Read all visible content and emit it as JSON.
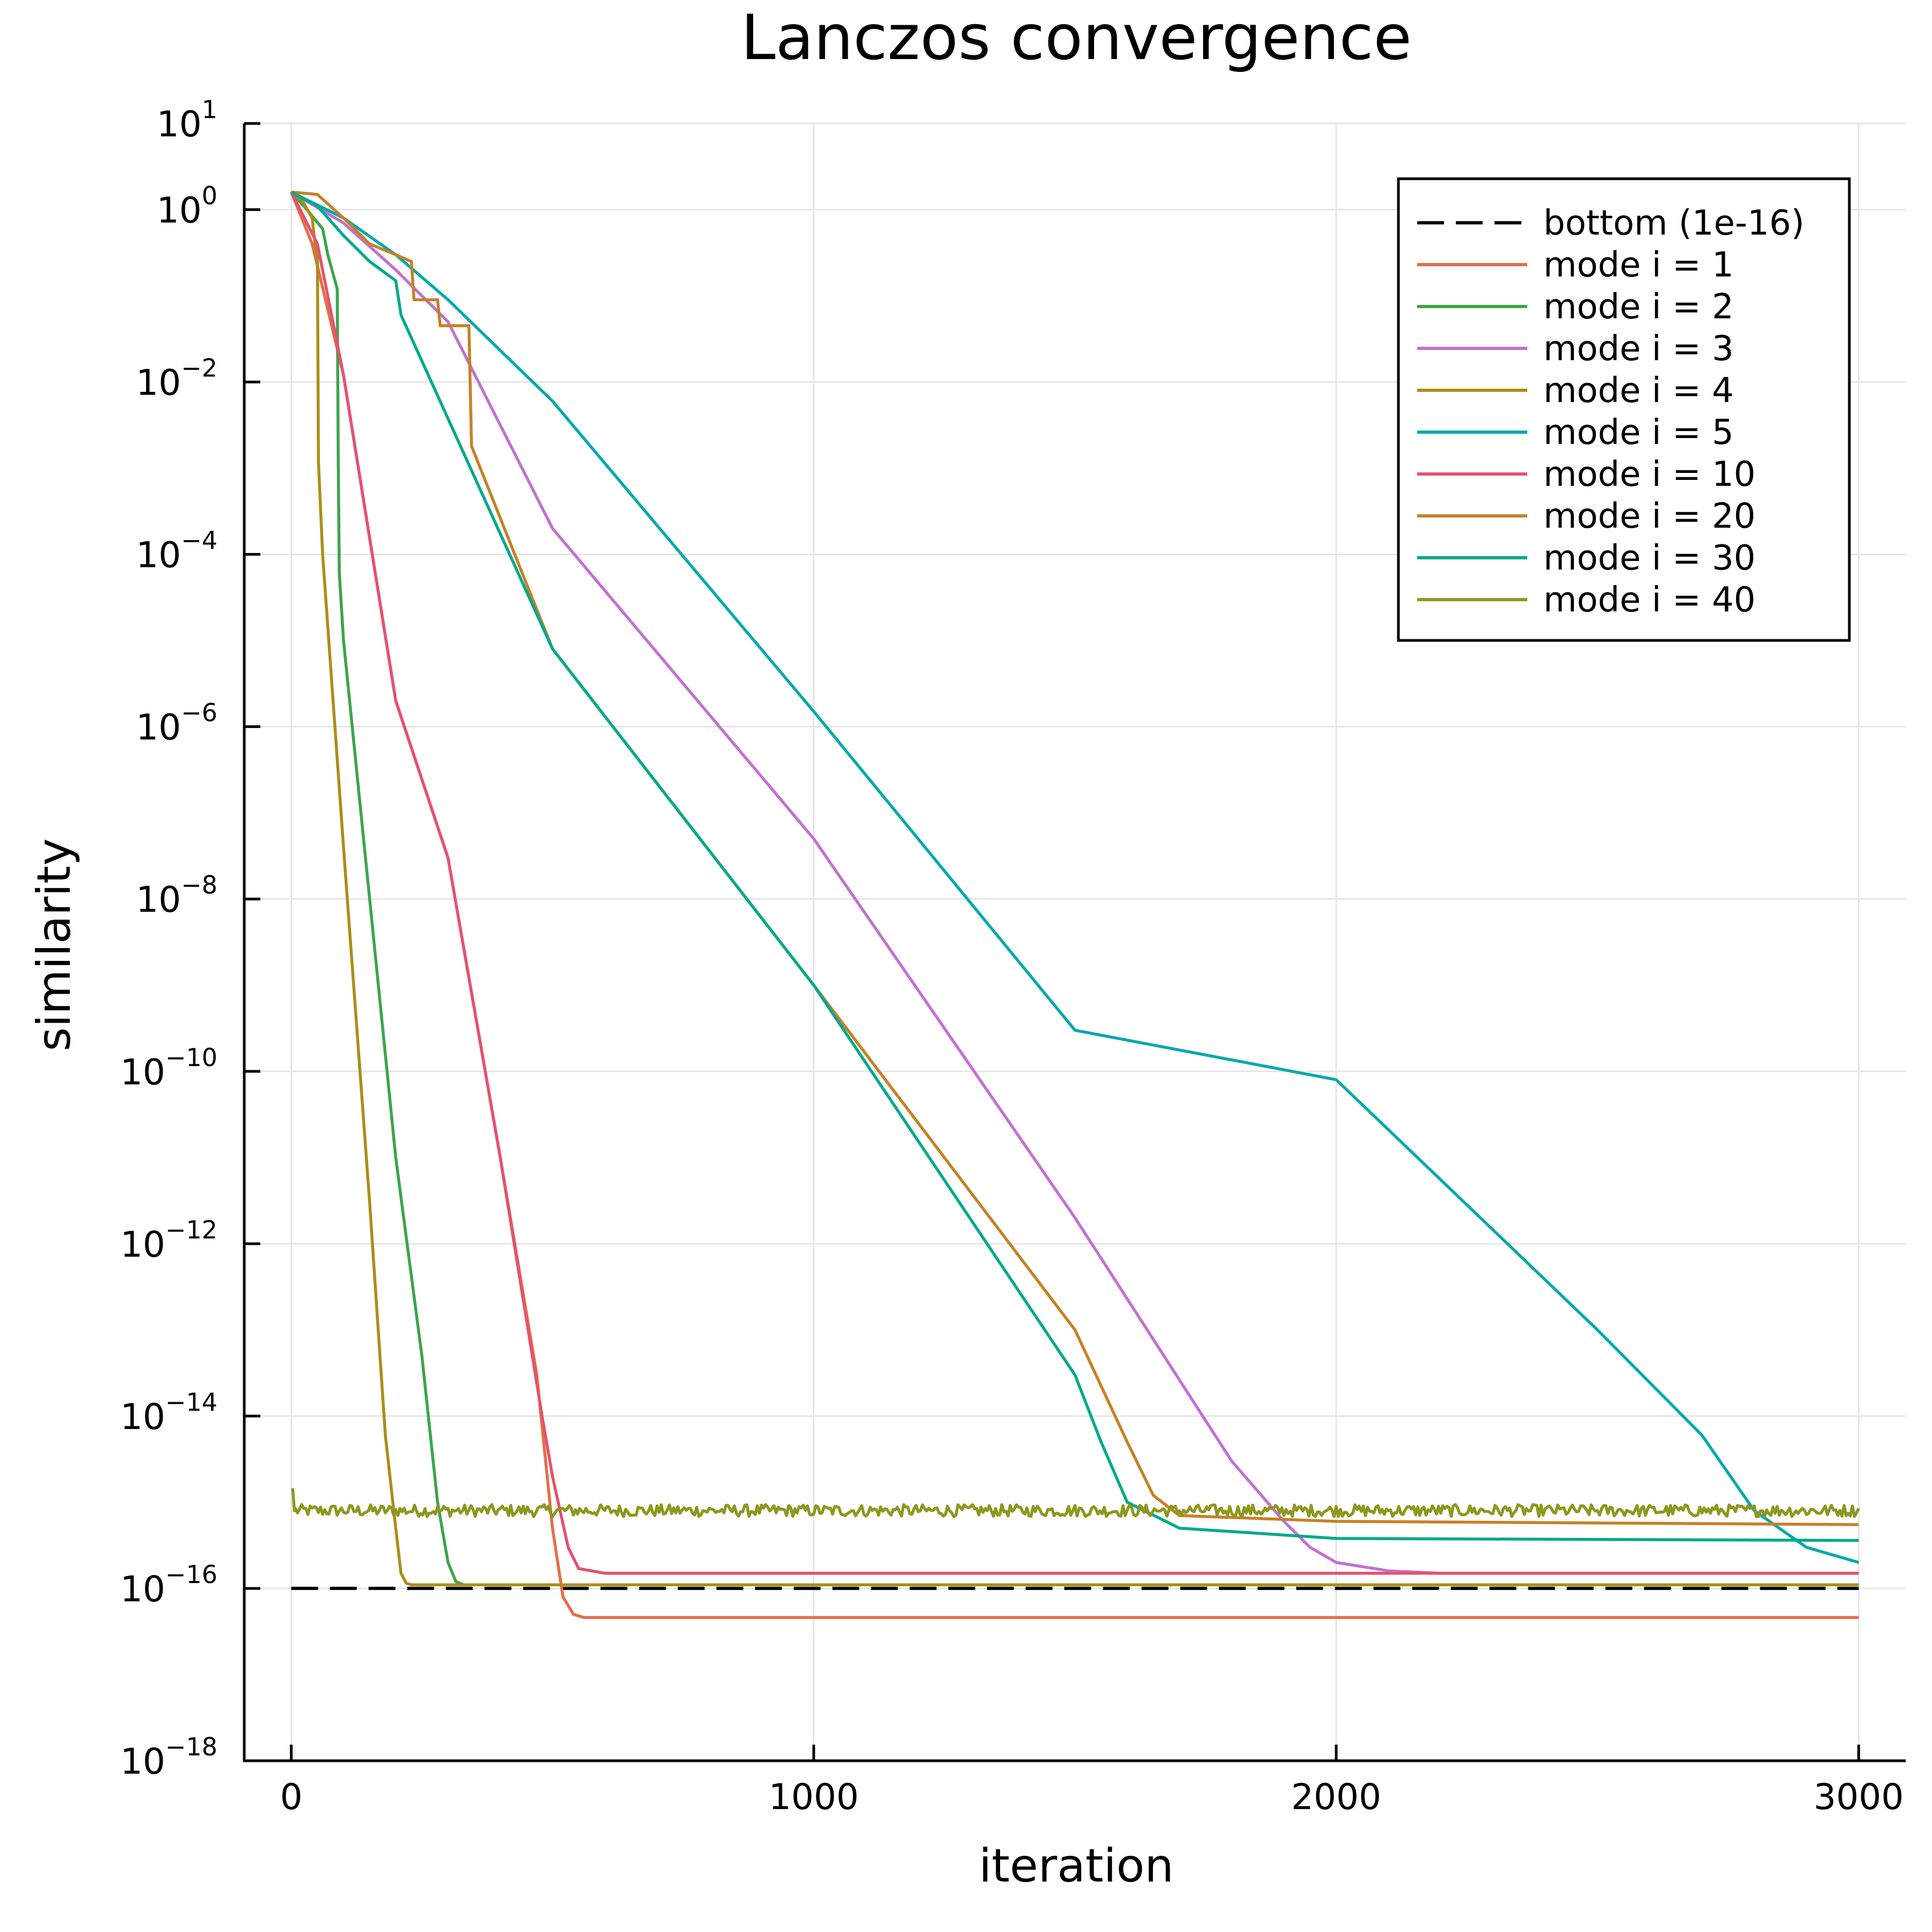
{
  "chart_data": {
    "type": "line",
    "title": "Lanczos convergence",
    "xlabel": "iteration",
    "ylabel": "similarity",
    "xlim": [
      -90,
      3090
    ],
    "ylim": [
      1e-18,
      10
    ],
    "yscale": "log10",
    "xticks": [
      0,
      1000,
      2000,
      3000
    ],
    "xtick_labels": [
      "0",
      "1000",
      "2000",
      "3000"
    ],
    "yticks": [
      {
        "value": 1,
        "base": "10",
        "exp": "1"
      },
      {
        "value": 0,
        "base": "10",
        "exp": "0"
      },
      {
        "value": -2,
        "base": "10",
        "exp": "−2"
      },
      {
        "value": -4,
        "base": "10",
        "exp": "−4"
      },
      {
        "value": -6,
        "base": "10",
        "exp": "−6"
      },
      {
        "value": -8,
        "base": "10",
        "exp": "−8"
      },
      {
        "value": -10,
        "base": "10",
        "exp": "−10"
      },
      {
        "value": -12,
        "base": "10",
        "exp": "−12"
      },
      {
        "value": -14,
        "base": "10",
        "exp": "−14"
      },
      {
        "value": -16,
        "base": "10",
        "exp": "−16"
      },
      {
        "value": -18,
        "base": "10",
        "exp": "−18"
      }
    ],
    "grid": true,
    "legend_position": "top-right",
    "series": [
      {
        "name": "bottom (1e-16)",
        "color": "#000000",
        "dashed": true,
        "x": [
          0,
          3000
        ],
        "y": [
          1e-16,
          1e-16
        ]
      },
      {
        "name": "mode i = 1",
        "color": "#e26f46",
        "x": [
          0,
          40,
          100,
          200,
          300,
          400,
          470,
          500,
          520,
          540,
          560,
          3000
        ],
        "y": [
          1.6,
          0.4,
          0.012,
          2e-06,
          3e-08,
          1e-11,
          3e-14,
          5e-16,
          8e-17,
          5e-17,
          4.6e-17,
          4.6e-17
        ]
      },
      {
        "name": "mode i = 2",
        "color": "#3da44d",
        "x": [
          0,
          30,
          60,
          70,
          80,
          88,
          90,
          92,
          100,
          150,
          200,
          250,
          280,
          300,
          315,
          330,
          3000
        ],
        "y": [
          1.6,
          1.0,
          0.6,
          0.3,
          0.18,
          0.12,
          0.001,
          6e-05,
          1e-05,
          1e-08,
          1e-11,
          5e-14,
          1e-15,
          2e-16,
          1.2e-16,
          1.1e-16,
          1.1e-16
        ]
      },
      {
        "name": "mode i = 3",
        "color": "#c271d2",
        "x": [
          0,
          100,
          200,
          300,
          500,
          1000,
          1500,
          1800,
          1900,
          1950,
          2000,
          2100,
          2200,
          3000
        ],
        "y": [
          1.6,
          0.7,
          0.2,
          0.05,
          0.0002,
          5e-08,
          2e-12,
          3e-15,
          6e-16,
          3e-16,
          2e-16,
          1.6e-16,
          1.5e-16,
          1.5e-16
        ]
      },
      {
        "name": "mode i = 4",
        "color": "#ac8d18",
        "x": [
          0,
          20,
          40,
          48,
          50,
          52,
          60,
          100,
          150,
          180,
          200,
          210,
          220,
          230,
          3000
        ],
        "y": [
          1.6,
          1.3,
          0.8,
          0.3,
          0.3,
          0.0012,
          0.0001,
          4e-08,
          3e-12,
          6e-15,
          5e-16,
          1.5e-16,
          1.15e-16,
          1.1e-16,
          1.1e-16
        ]
      },
      {
        "name": "mode i = 5",
        "color": "#00a9ad",
        "x": [
          0,
          100,
          200,
          300,
          500,
          1000,
          1500,
          2000,
          2500,
          2700,
          2800,
          2900,
          3000
        ],
        "y": [
          1.6,
          0.8,
          0.3,
          0.09,
          0.006,
          1.5e-06,
          3e-10,
          8e-11,
          1e-13,
          6e-15,
          8e-16,
          3e-16,
          2e-16
        ]
      },
      {
        "name": "mode i = 10",
        "color": "#e6516f",
        "x": [
          0,
          50,
          100,
          200,
          300,
          400,
          480,
          500,
          530,
          550,
          600,
          3000
        ],
        "y": [
          1.6,
          0.4,
          0.012,
          2e-06,
          3e-08,
          1e-11,
          1e-14,
          2e-15,
          3e-16,
          1.7e-16,
          1.5e-16,
          1.5e-16
        ]
      },
      {
        "name": "mode i = 20",
        "color": "#c68125",
        "x": [
          0,
          50,
          100,
          150,
          200,
          230,
          235,
          280,
          285,
          340,
          345,
          500,
          1000,
          1500,
          1600,
          1650,
          1700,
          2000,
          3000
        ],
        "y": [
          1.6,
          1.5,
          0.8,
          0.4,
          0.3,
          0.25,
          0.09,
          0.09,
          0.045,
          0.045,
          0.0018,
          8e-06,
          1e-09,
          1e-13,
          5e-15,
          1.2e-15,
          7e-16,
          6e-16,
          5.5e-16
        ]
      },
      {
        "name": "mode i = 30",
        "color": "#00a98d",
        "x": [
          0,
          50,
          100,
          150,
          200,
          210,
          500,
          1000,
          1500,
          1550,
          1600,
          1700,
          2000,
          3000
        ],
        "y": [
          1.6,
          1.1,
          0.5,
          0.25,
          0.15,
          0.06,
          8e-06,
          1e-09,
          3e-14,
          5e-15,
          1e-15,
          5e-16,
          3.8e-16,
          3.6e-16
        ]
      },
      {
        "name": "mode i = 40",
        "color": "#8e971e",
        "x": [
          0,
          3,
          6,
          3000
        ],
        "y": [
          1.4e-15,
          1.4e-15,
          8e-16,
          8e-16
        ],
        "noisy": true
      }
    ]
  }
}
